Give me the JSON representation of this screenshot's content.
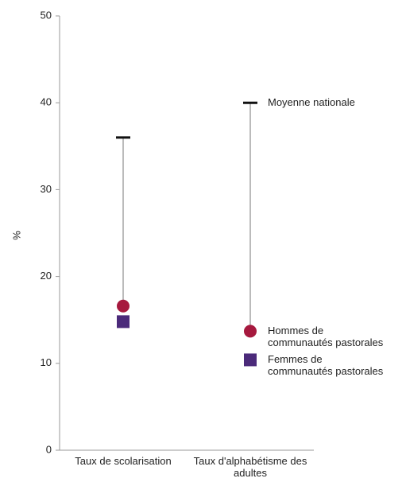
{
  "chart_data": {
    "type": "dot-range",
    "ylabel": "%",
    "categories": [
      "Taux de scolarisation",
      "Taux d'alphabétisme des adultes"
    ],
    "series": [
      {
        "name": "Moyenne nationale",
        "color": "#111111",
        "marker": "dash",
        "values": [
          36,
          40
        ]
      },
      {
        "name": "Hommes de communautés pastorales",
        "color": "#a6193e",
        "marker": "circle",
        "values": [
          16.6,
          13.7
        ]
      },
      {
        "name": "Femmes de communautés pastorales",
        "color": "#4b2a7a",
        "marker": "square",
        "values": [
          14.8,
          10.4
        ]
      }
    ],
    "ylim": [
      0,
      50
    ],
    "yticks": [
      0,
      10,
      20,
      30,
      40,
      50
    ]
  }
}
